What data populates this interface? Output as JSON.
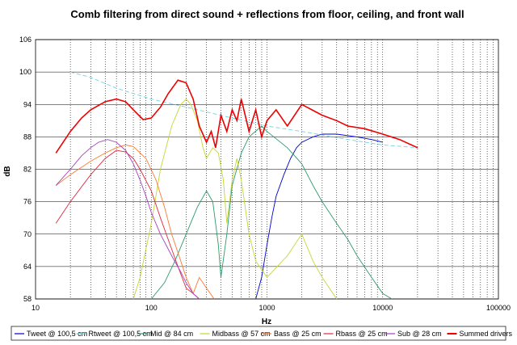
{
  "chart_data": {
    "type": "line",
    "title": "Comb filtering from direct sound + reflections from floor, ceiling, and front wall",
    "xlabel": "Hz",
    "ylabel": "dB",
    "xscale": "log",
    "xlim": [
      10,
      100000
    ],
    "ylim": [
      58,
      106
    ],
    "x_ticks": [
      "10",
      "100",
      "1000",
      "10000",
      "100000"
    ],
    "y_ticks": [
      "58",
      "64",
      "70",
      "76",
      "82",
      "88",
      "94",
      "100",
      "106"
    ],
    "grid": "vertical dotted at 1-2-3..9 decades",
    "legend": "bottom",
    "series": [
      {
        "name": "Tweet @ 100,5 cm",
        "color": "#0000cc",
        "points": [
          [
            800,
            58
          ],
          [
            900,
            62
          ],
          [
            1000,
            68
          ],
          [
            1100,
            73
          ],
          [
            1200,
            77
          ],
          [
            1400,
            81
          ],
          [
            1600,
            84
          ],
          [
            1800,
            86
          ],
          [
            2000,
            87
          ],
          [
            2500,
            88
          ],
          [
            3000,
            88.5
          ],
          [
            4000,
            88.5
          ],
          [
            6000,
            88
          ],
          [
            8000,
            87.5
          ],
          [
            10000,
            87
          ]
        ]
      },
      {
        "name": "Rtweet @ 100,5 cm",
        "color": "#6fd3e6",
        "points": [
          [
            20,
            100
          ],
          [
            30,
            99
          ],
          [
            50,
            97
          ],
          [
            100,
            95
          ],
          [
            200,
            93.5
          ],
          [
            500,
            91.5
          ],
          [
            1000,
            90
          ],
          [
            2000,
            89
          ],
          [
            5000,
            87.5
          ],
          [
            10000,
            86.5
          ],
          [
            20000,
            86
          ]
        ]
      },
      {
        "name": "Mid @ 84 cm",
        "color": "#2e9a6a",
        "points": [
          [
            100,
            58
          ],
          [
            130,
            61
          ],
          [
            160,
            65
          ],
          [
            200,
            70
          ],
          [
            250,
            75
          ],
          [
            300,
            78
          ],
          [
            340,
            76
          ],
          [
            380,
            68
          ],
          [
            400,
            62
          ],
          [
            450,
            70
          ],
          [
            500,
            79
          ],
          [
            600,
            85
          ],
          [
            700,
            88
          ],
          [
            900,
            90
          ],
          [
            1000,
            89
          ],
          [
            1500,
            86
          ],
          [
            2000,
            83
          ],
          [
            2500,
            79
          ],
          [
            3000,
            76
          ],
          [
            4000,
            72
          ],
          [
            5000,
            69
          ],
          [
            6000,
            66
          ],
          [
            8000,
            62
          ],
          [
            10000,
            59
          ],
          [
            12000,
            58
          ]
        ]
      },
      {
        "name": "Midbass @ 57 cm",
        "color": "#c5d633",
        "points": [
          [
            70,
            58
          ],
          [
            80,
            62
          ],
          [
            100,
            72
          ],
          [
            120,
            82
          ],
          [
            150,
            90
          ],
          [
            180,
            94
          ],
          [
            200,
            95
          ],
          [
            220,
            94
          ],
          [
            250,
            91
          ],
          [
            280,
            86
          ],
          [
            300,
            84
          ],
          [
            340,
            86
          ],
          [
            380,
            85
          ],
          [
            420,
            80
          ],
          [
            450,
            72
          ],
          [
            500,
            80
          ],
          [
            550,
            84
          ],
          [
            600,
            80
          ],
          [
            700,
            70
          ],
          [
            800,
            65
          ],
          [
            1000,
            62
          ],
          [
            1500,
            66
          ],
          [
            2000,
            70
          ],
          [
            2500,
            65
          ],
          [
            3000,
            62
          ],
          [
            4000,
            58
          ]
        ]
      },
      {
        "name": "Bass @ 25 cm",
        "color": "#ff7a30",
        "points": [
          [
            15,
            79
          ],
          [
            20,
            81
          ],
          [
            30,
            83.5
          ],
          [
            40,
            85
          ],
          [
            50,
            86
          ],
          [
            60,
            86.5
          ],
          [
            70,
            86.2
          ],
          [
            90,
            84
          ],
          [
            110,
            80
          ],
          [
            130,
            75
          ],
          [
            150,
            70
          ],
          [
            180,
            65
          ],
          [
            200,
            62
          ],
          [
            230,
            59
          ],
          [
            260,
            62
          ],
          [
            300,
            60
          ],
          [
            350,
            58
          ]
        ]
      },
      {
        "name": "Rbass @ 25 cm",
        "color": "#e0283c",
        "points": [
          [
            15,
            72
          ],
          [
            20,
            76
          ],
          [
            30,
            81
          ],
          [
            40,
            84
          ],
          [
            50,
            85.5
          ],
          [
            60,
            85.2
          ],
          [
            70,
            84
          ],
          [
            80,
            82
          ],
          [
            100,
            78
          ],
          [
            120,
            73
          ],
          [
            140,
            69
          ],
          [
            170,
            64
          ],
          [
            200,
            60
          ],
          [
            230,
            59
          ],
          [
            260,
            58
          ]
        ]
      },
      {
        "name": "Sub @ 28 cm",
        "color": "#a63fbf",
        "points": [
          [
            15,
            79
          ],
          [
            20,
            82
          ],
          [
            25,
            84.5
          ],
          [
            30,
            86
          ],
          [
            35,
            87
          ],
          [
            42,
            87.5
          ],
          [
            50,
            87
          ],
          [
            60,
            85.5
          ],
          [
            70,
            83
          ],
          [
            80,
            80
          ],
          [
            90,
            77
          ],
          [
            100,
            74
          ],
          [
            120,
            70
          ],
          [
            150,
            66
          ],
          [
            180,
            63
          ],
          [
            200,
            61
          ],
          [
            230,
            59
          ],
          [
            260,
            58
          ]
        ]
      },
      {
        "name": "Summed drivers",
        "color": "#ee0000",
        "points": [
          [
            15,
            85
          ],
          [
            20,
            89
          ],
          [
            25,
            91.5
          ],
          [
            30,
            93
          ],
          [
            40,
            94.5
          ],
          [
            50,
            95
          ],
          [
            60,
            94.5
          ],
          [
            70,
            93
          ],
          [
            85,
            91.2
          ],
          [
            100,
            91.5
          ],
          [
            120,
            93.5
          ],
          [
            140,
            96
          ],
          [
            170,
            98.5
          ],
          [
            200,
            98
          ],
          [
            230,
            95
          ],
          [
            260,
            90
          ],
          [
            300,
            87
          ],
          [
            330,
            89
          ],
          [
            360,
            86
          ],
          [
            400,
            92
          ],
          [
            450,
            89
          ],
          [
            500,
            93
          ],
          [
            550,
            91
          ],
          [
            600,
            95
          ],
          [
            700,
            89
          ],
          [
            800,
            93
          ],
          [
            900,
            88
          ],
          [
            1000,
            91
          ],
          [
            1200,
            93
          ],
          [
            1500,
            90
          ],
          [
            2000,
            94
          ],
          [
            3000,
            92
          ],
          [
            4000,
            91
          ],
          [
            5000,
            90
          ],
          [
            7000,
            89.5
          ],
          [
            10000,
            88.5
          ],
          [
            14000,
            87.5
          ],
          [
            20000,
            86
          ]
        ]
      }
    ]
  }
}
